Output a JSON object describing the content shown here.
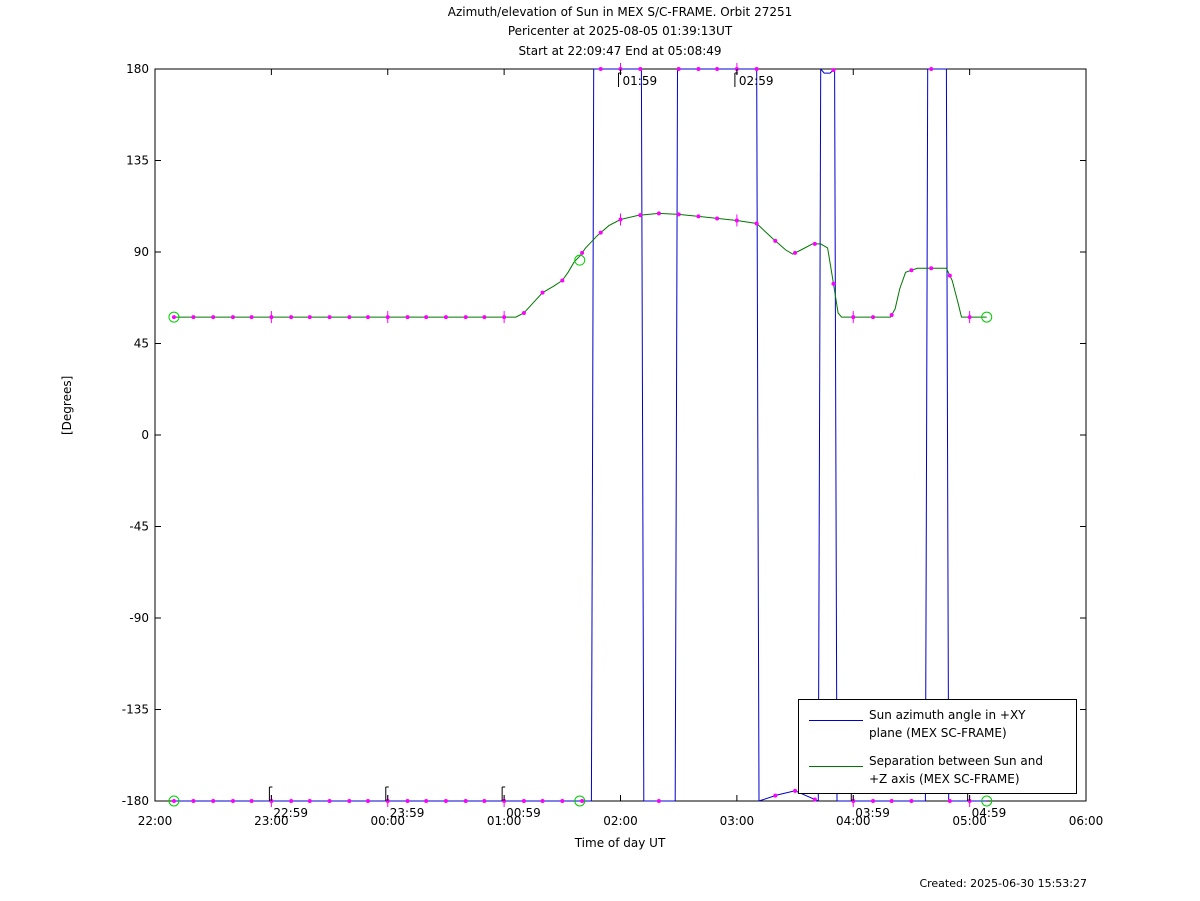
{
  "title_lines": [
    "Azimuth/elevation of Sun in MEX S/C-FRAME.  Orbit 27251",
    "Pericenter at 2025-08-05 01:39:13UT",
    "Start at 22:09:47 End at 05:08:49"
  ],
  "created": "Created: 2025-06-30 15:53:27",
  "colors": {
    "azimuth": "#0000cc",
    "separation": "#007700",
    "markers": "#ff00ff",
    "endpoints": "#00cc00"
  },
  "chart_data": {
    "type": "line",
    "xlabel": "Time of day UT",
    "ylabel": "[Degrees]",
    "xlim": [
      22,
      30
    ],
    "ylim": [
      -180,
      180
    ],
    "x_ticks": [
      {
        "v": 22,
        "label": "22:00"
      },
      {
        "v": 23,
        "label": "23:00"
      },
      {
        "v": 24,
        "label": "00:00"
      },
      {
        "v": 25,
        "label": "01:00"
      },
      {
        "v": 26,
        "label": "02:00"
      },
      {
        "v": 27,
        "label": "03:00"
      },
      {
        "v": 28,
        "label": "04:00"
      },
      {
        "v": 29,
        "label": "05:00"
      },
      {
        "v": 30,
        "label": "06:00"
      }
    ],
    "y_ticks": [
      180,
      135,
      90,
      45,
      0,
      -45,
      -90,
      -135,
      -180
    ],
    "annotations": [
      {
        "x": 22.983,
        "y": -180,
        "label": "22:59"
      },
      {
        "x": 23.983,
        "y": -180,
        "label": "23:59"
      },
      {
        "x": 24.983,
        "y": -180,
        "label": "00:59"
      },
      {
        "x": 25.983,
        "y": 180,
        "label": "01:59"
      },
      {
        "x": 26.983,
        "y": 180,
        "label": "02:59"
      },
      {
        "x": 27.983,
        "y": -180,
        "label": "03:59"
      },
      {
        "x": 28.983,
        "y": -180,
        "label": "04:59"
      }
    ],
    "series": [
      {
        "name": "Sun azimuth angle in +XY plane (MEX SC-FRAME)",
        "segments": [
          [
            [
              22.163,
              -180
            ],
            [
              22.5,
              -180
            ],
            [
              23,
              -180
            ],
            [
              23.5,
              -180
            ],
            [
              24,
              -180
            ],
            [
              24.5,
              -180
            ],
            [
              25,
              -180
            ],
            [
              25.5,
              -180
            ],
            [
              25.65,
              -180
            ],
            [
              25.75,
              -180
            ]
          ],
          [
            [
              25.75,
              -180
            ],
            [
              25.76,
              0
            ],
            [
              25.77,
              180
            ]
          ],
          [
            [
              25.77,
              180
            ],
            [
              26,
              180
            ],
            [
              26.18,
              180
            ]
          ],
          [
            [
              26.18,
              180
            ],
            [
              26.19,
              0
            ],
            [
              26.2,
              -180
            ]
          ],
          [
            [
              26.2,
              -180
            ],
            [
              26.47,
              -180
            ]
          ],
          [
            [
              26.47,
              -180
            ],
            [
              26.48,
              0
            ],
            [
              26.49,
              180
            ]
          ],
          [
            [
              26.49,
              180
            ],
            [
              26.8,
              180
            ],
            [
              27,
              180
            ],
            [
              27.17,
              180
            ]
          ],
          [
            [
              27.17,
              180
            ],
            [
              27.18,
              0
            ],
            [
              27.19,
              -180
            ]
          ],
          [
            [
              27.19,
              -180
            ],
            [
              27.35,
              -177
            ],
            [
              27.5,
              -175
            ],
            [
              27.62,
              -178
            ],
            [
              27.7,
              -180
            ]
          ],
          [
            [
              27.7,
              -180
            ],
            [
              27.71,
              0
            ],
            [
              27.72,
              180
            ]
          ],
          [
            [
              27.72,
              180
            ],
            [
              27.75,
              178
            ],
            [
              27.8,
              178
            ],
            [
              27.84,
              180
            ]
          ],
          [
            [
              27.84,
              180
            ],
            [
              27.85,
              0
            ],
            [
              27.86,
              -180
            ]
          ],
          [
            [
              27.86,
              -180
            ],
            [
              28,
              -180
            ],
            [
              28.3,
              -180
            ],
            [
              28.62,
              -180
            ]
          ],
          [
            [
              28.62,
              -180
            ],
            [
              28.63,
              0
            ],
            [
              28.64,
              180
            ]
          ],
          [
            [
              28.64,
              180
            ],
            [
              28.8,
              180
            ]
          ],
          [
            [
              28.8,
              180
            ],
            [
              28.81,
              0
            ],
            [
              28.82,
              -180
            ]
          ],
          [
            [
              28.82,
              -180
            ],
            [
              29,
              -180
            ],
            [
              29.147,
              -180
            ]
          ]
        ]
      },
      {
        "name": "Separation between Sun and +Z axis (MEX SC-FRAME)",
        "points": [
          [
            22.163,
            58
          ],
          [
            22.5,
            58
          ],
          [
            23,
            58
          ],
          [
            23.5,
            58
          ],
          [
            24,
            58
          ],
          [
            24.5,
            58
          ],
          [
            25,
            58
          ],
          [
            25.1,
            58
          ],
          [
            25.17,
            60
          ],
          [
            25.25,
            65
          ],
          [
            25.33,
            70
          ],
          [
            25.42,
            73
          ],
          [
            25.5,
            76
          ],
          [
            25.55,
            80
          ],
          [
            25.6,
            85
          ],
          [
            25.65,
            88
          ],
          [
            25.7,
            92
          ],
          [
            25.8,
            98
          ],
          [
            25.9,
            103
          ],
          [
            26,
            106
          ],
          [
            26.15,
            108
          ],
          [
            26.33,
            109
          ],
          [
            26.5,
            108.5
          ],
          [
            26.67,
            107.5
          ],
          [
            26.83,
            106.5
          ],
          [
            27,
            105.5
          ],
          [
            27.17,
            104
          ],
          [
            27.3,
            97
          ],
          [
            27.42,
            91
          ],
          [
            27.48,
            89
          ],
          [
            27.55,
            91
          ],
          [
            27.65,
            94
          ],
          [
            27.72,
            94
          ],
          [
            27.78,
            92
          ],
          [
            27.82,
            78
          ],
          [
            27.87,
            60
          ],
          [
            27.9,
            58
          ],
          [
            28,
            58
          ],
          [
            28.15,
            58
          ],
          [
            28.32,
            58
          ],
          [
            28.36,
            62
          ],
          [
            28.4,
            72
          ],
          [
            28.45,
            80
          ],
          [
            28.55,
            82
          ],
          [
            28.7,
            82
          ],
          [
            28.8,
            82
          ],
          [
            28.85,
            76
          ],
          [
            28.9,
            65
          ],
          [
            28.93,
            58
          ],
          [
            29,
            58
          ],
          [
            29.147,
            58
          ]
        ]
      }
    ],
    "marker_x": [
      22.163,
      22.33,
      22.5,
      22.67,
      22.83,
      23,
      23.17,
      23.33,
      23.5,
      23.67,
      23.83,
      24,
      24.17,
      24.33,
      24.5,
      24.67,
      24.83,
      25,
      25.17,
      25.33,
      25.5,
      25.67,
      25.83,
      26,
      26.17,
      26.33,
      26.5,
      26.67,
      26.83,
      27,
      27.17,
      27.33,
      27.5,
      27.67,
      27.83,
      28,
      28.17,
      28.33,
      28.5,
      28.67,
      28.83,
      29
    ],
    "legend": {
      "placement": "bottom-right"
    }
  }
}
